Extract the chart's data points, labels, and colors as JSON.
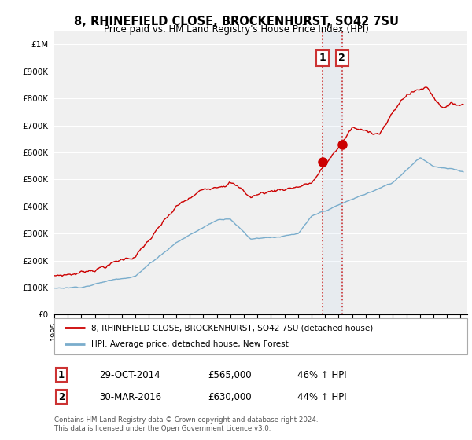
{
  "title": "8, RHINEFIELD CLOSE, BROCKENHURST, SO42 7SU",
  "subtitle": "Price paid vs. HM Land Registry's House Price Index (HPI)",
  "ylim": [
    0,
    1050000
  ],
  "yticks": [
    0,
    100000,
    200000,
    300000,
    400000,
    500000,
    600000,
    700000,
    800000,
    900000,
    1000000
  ],
  "ytick_labels": [
    "£0",
    "£100K",
    "£200K",
    "£300K",
    "£400K",
    "£500K",
    "£600K",
    "£700K",
    "£800K",
    "£900K",
    "£1M"
  ],
  "xlim_start": 1995.0,
  "xlim_end": 2025.5,
  "red_line_color": "#cc0000",
  "blue_line_color": "#7aadcc",
  "purchase1_x": 2014.83,
  "purchase1_y": 565000,
  "purchase2_x": 2016.25,
  "purchase2_y": 630000,
  "vline_color": "#cc3333",
  "legend_label_red": "8, RHINEFIELD CLOSE, BROCKENHURST, SO42 7SU (detached house)",
  "legend_label_blue": "HPI: Average price, detached house, New Forest",
  "table_row1": [
    "1",
    "29-OCT-2014",
    "£565,000",
    "46% ↑ HPI"
  ],
  "table_row2": [
    "2",
    "30-MAR-2016",
    "£630,000",
    "44% ↑ HPI"
  ],
  "footnote1": "Contains HM Land Registry data © Crown copyright and database right 2024.",
  "footnote2": "This data is licensed under the Open Government Licence v3.0.",
  "background_color": "#ffffff",
  "plot_bg_color": "#f0f0f0",
  "grid_color": "#ffffff"
}
